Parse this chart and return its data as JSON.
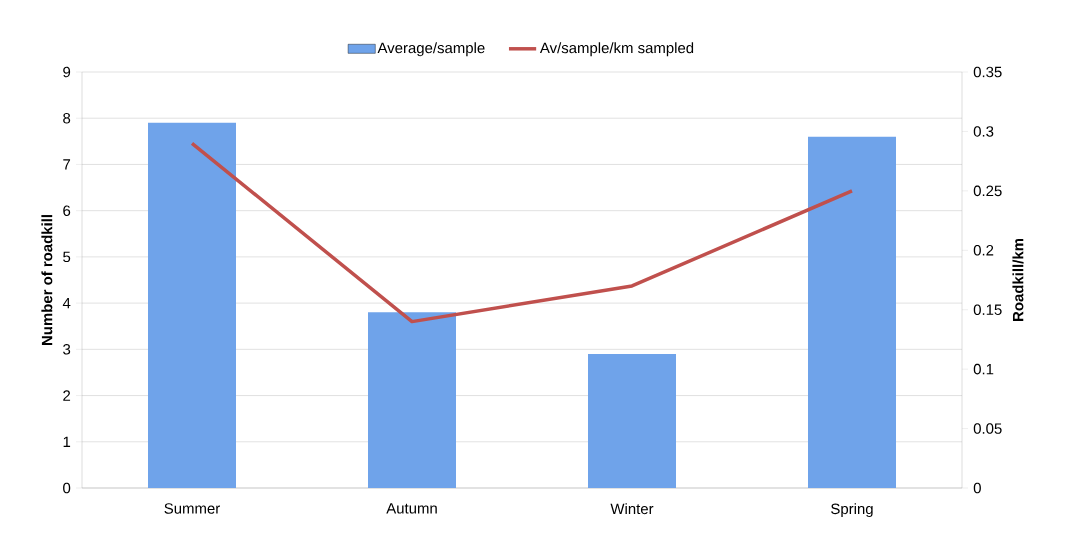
{
  "chart_data": {
    "type": "bar",
    "categories": [
      "Summer",
      "Autumn",
      "Winter",
      "Spring"
    ],
    "ylabel": "Number of roadkill",
    "y2label": "Roadkill/km",
    "ylim": [
      0,
      9
    ],
    "yticks": [
      0,
      1,
      2,
      3,
      4,
      5,
      6,
      7,
      8,
      9
    ],
    "y2lim": [
      0,
      0.35
    ],
    "y2ticks": [
      0,
      0.05,
      0.1,
      0.15,
      0.2,
      0.25,
      0.3,
      0.35
    ],
    "grid": "y",
    "legend": "top",
    "series": [
      {
        "name": "Average/sample",
        "color": "#6fa3ea",
        "values": [
          7.9,
          3.8,
          2.9,
          7.6
        ]
      },
      {
        "name": "Av/sample/km sampled",
        "type": "line",
        "axis": "y2",
        "color": "#c0504d",
        "values": [
          0.29,
          0.14,
          0.17,
          0.25
        ]
      }
    ]
  }
}
